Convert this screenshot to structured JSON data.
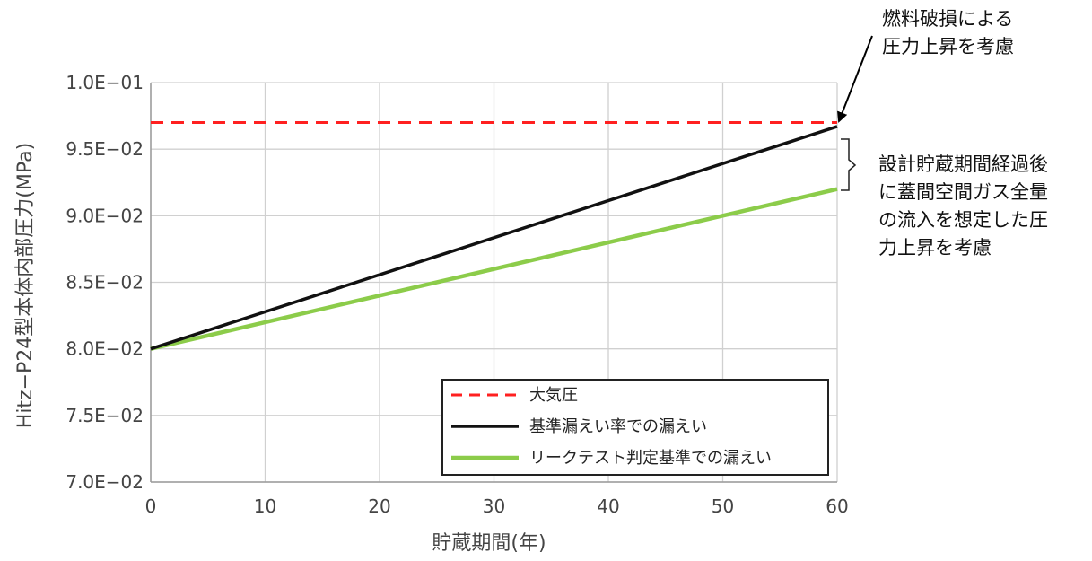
{
  "chart_data": {
    "type": "line",
    "xlabel": "貯蔵期間(年)",
    "ylabel": "Hitz−P24型本体内部圧力(MPa)",
    "xlim": [
      0,
      60
    ],
    "ylim": [
      0.07,
      0.1
    ],
    "x_ticks": [
      0,
      10,
      20,
      30,
      40,
      50,
      60
    ],
    "y_ticks": [
      0.07,
      0.075,
      0.08,
      0.085,
      0.09,
      0.095,
      0.1
    ],
    "y_tick_labels": [
      "7.0E−02",
      "7.5E−02",
      "8.0E−02",
      "8.5E−02",
      "9.0E−02",
      "9.5E−02",
      "1.0E−01"
    ],
    "grid": true,
    "legend_position": "bottom-right",
    "series": [
      {
        "name": "大気圧",
        "x": [
          0,
          60
        ],
        "y": [
          0.097,
          0.097
        ],
        "color": "#ff2020",
        "style": "dashed"
      },
      {
        "name": "基準漏えい率での漏えい",
        "x": [
          0,
          60
        ],
        "y": [
          0.08,
          0.0967
        ],
        "color": "#111111",
        "style": "solid"
      },
      {
        "name": "リークテスト判定基準での漏えい",
        "x": [
          0,
          60
        ],
        "y": [
          0.08,
          0.092
        ],
        "color": "#8ccc4a",
        "style": "solid"
      }
    ],
    "annotations": [
      {
        "lines": [
          "燃料破損による",
          "圧力上昇を考慮"
        ]
      },
      {
        "lines": [
          "設計貯蔵期間経過後",
          "に蓋間空間ガス全量",
          "の流入を想定した圧",
          "力上昇を考慮"
        ]
      }
    ]
  }
}
